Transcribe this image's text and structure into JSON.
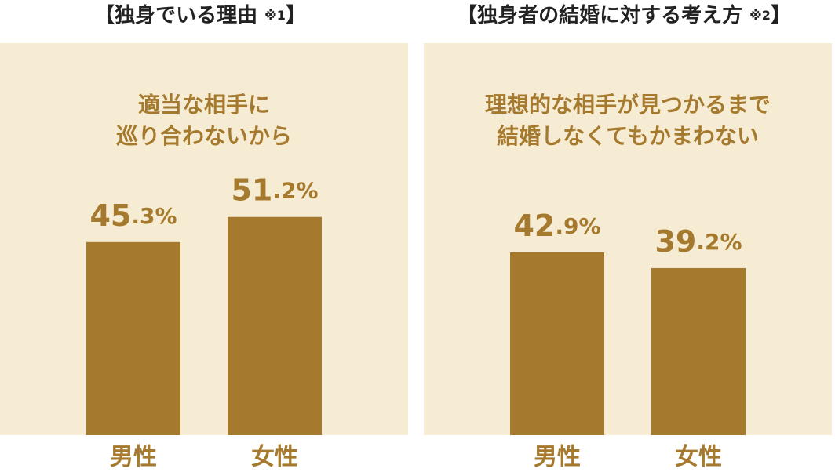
{
  "chart_data": [
    {
      "type": "bar",
      "title": "【独身でいる理由 ※1】",
      "subtitle": [
        "適当な相手に",
        "巡り合わないから"
      ],
      "categories": [
        "男性",
        "女性"
      ],
      "values": [
        45.3,
        51.2
      ],
      "value_labels": [
        "45.3%",
        "51.2%"
      ],
      "color": "#a67a2e",
      "ylim": [
        0,
        92
      ]
    },
    {
      "type": "bar",
      "title": "【独身者の結婚に対する考え方 ※2】",
      "subtitle": [
        "理想的な相手が見つかるまで",
        "結婚しなくてもかまわない"
      ],
      "categories": [
        "男性",
        "女性"
      ],
      "values": [
        42.9,
        39.2
      ],
      "value_labels": [
        "42.9%",
        "39.2%"
      ],
      "color": "#a67a2e",
      "ylim": [
        0,
        92
      ]
    }
  ]
}
